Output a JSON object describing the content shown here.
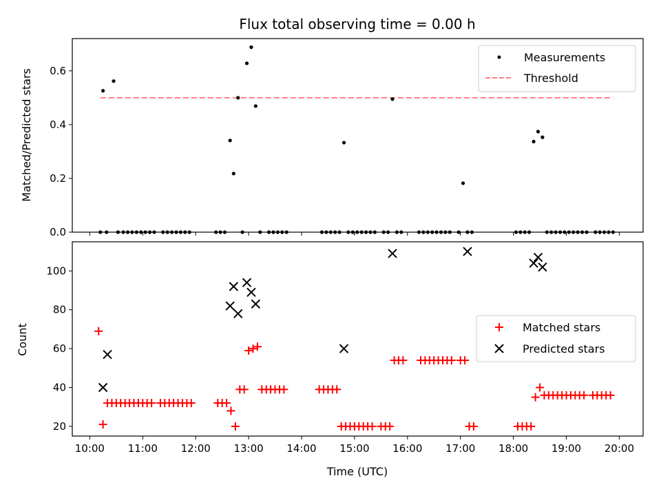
{
  "title": "Flux total observing time = 0.00 h",
  "chart_data": [
    {
      "type": "scatter",
      "ylabel": "Matched/Predicted stars",
      "xlabel": "",
      "x_range_hours": [
        9.67,
        20.45
      ],
      "ylim": [
        0.0,
        0.72
      ],
      "yticks": [
        0.0,
        0.2,
        0.4,
        0.6
      ],
      "ytick_labels": [
        "0.0",
        "0.2",
        "0.4",
        "0.6"
      ],
      "grid": false,
      "legend_position": "top-right",
      "series": [
        {
          "name": "Measurements",
          "kind": "points",
          "color": "#000000",
          "x": [
            "10:12",
            "10:15",
            "10:19",
            "10:27",
            "10:32",
            "10:38",
            "10:43",
            "10:48",
            "10:53",
            "10:58",
            "11:03",
            "11:08",
            "11:13",
            "11:23",
            "11:28",
            "11:33",
            "11:38",
            "11:43",
            "11:48",
            "11:53",
            "12:23",
            "12:28",
            "12:33",
            "12:39",
            "12:43",
            "12:48",
            "12:53",
            "12:58",
            "13:03",
            "13:08",
            "13:13",
            "13:23",
            "13:28",
            "13:33",
            "13:38",
            "13:43",
            "14:23",
            "14:28",
            "14:33",
            "14:38",
            "14:43",
            "14:48",
            "14:53",
            "14:58",
            "15:03",
            "15:08",
            "15:13",
            "15:18",
            "15:23",
            "15:33",
            "15:38",
            "15:43",
            "15:48",
            "15:53",
            "16:13",
            "16:18",
            "16:23",
            "16:28",
            "16:33",
            "16:38",
            "16:43",
            "16:48",
            "16:58",
            "17:03",
            "17:08",
            "17:13",
            "18:03",
            "18:08",
            "18:13",
            "18:18",
            "18:23",
            "18:28",
            "18:33",
            "18:38",
            "18:43",
            "18:48",
            "18:53",
            "18:58",
            "19:03",
            "19:08",
            "19:13",
            "19:18",
            "19:23",
            "19:33",
            "19:38",
            "19:43",
            "19:48",
            "19:53"
          ],
          "y": [
            0.0,
            0.526,
            0.0,
            0.562,
            0.0,
            0.0,
            0.0,
            0.0,
            0.0,
            0.0,
            0.0,
            0.0,
            0.0,
            0.0,
            0.0,
            0.0,
            0.0,
            0.0,
            0.0,
            0.0,
            0.0,
            0.0,
            0.0,
            0.341,
            0.218,
            0.5,
            0.0,
            0.628,
            0.688,
            0.469,
            0.0,
            0.0,
            0.0,
            0.0,
            0.0,
            0.0,
            0.0,
            0.0,
            0.0,
            0.0,
            0.0,
            0.333,
            0.0,
            0.0,
            0.0,
            0.0,
            0.0,
            0.0,
            0.0,
            0.0,
            0.0,
            0.495,
            0.0,
            0.0,
            0.0,
            0.0,
            0.0,
            0.0,
            0.0,
            0.0,
            0.0,
            0.0,
            0.0,
            0.182,
            0.0,
            0.0,
            0.0,
            0.0,
            0.0,
            0.0,
            0.337,
            0.374,
            0.353,
            0.0,
            0.0,
            0.0,
            0.0,
            0.0,
            0.0,
            0.0,
            0.0,
            0.0,
            0.0,
            0.0,
            0.0,
            0.0,
            0.0,
            0.0
          ]
        },
        {
          "name": "Threshold",
          "kind": "dashed-line",
          "color": "#ff7f7f",
          "x": [
            "10:12",
            "19:53"
          ],
          "y": [
            0.5,
            0.5
          ]
        }
      ]
    },
    {
      "type": "scatter",
      "ylabel": "Count",
      "xlabel": "Time (UTC)",
      "x_range_hours": [
        9.67,
        20.45
      ],
      "ylim": [
        15,
        115
      ],
      "yticks": [
        20,
        40,
        60,
        80,
        100
      ],
      "ytick_labels": [
        "20",
        "40",
        "60",
        "80",
        "100"
      ],
      "xticks": [
        "10:00",
        "11:00",
        "12:00",
        "13:00",
        "14:00",
        "15:00",
        "16:00",
        "17:00",
        "18:00",
        "19:00",
        "20:00"
      ],
      "grid": false,
      "legend_position": "center-right",
      "series": [
        {
          "name": "Matched stars",
          "marker": "plus",
          "color": "#ff0000",
          "x": [
            "10:10",
            "10:15",
            "10:20",
            "10:25",
            "10:30",
            "10:35",
            "10:40",
            "10:45",
            "10:50",
            "10:55",
            "11:00",
            "11:05",
            "11:10",
            "11:20",
            "11:25",
            "11:30",
            "11:35",
            "11:40",
            "11:45",
            "11:50",
            "11:55",
            "12:25",
            "12:30",
            "12:35",
            "12:40",
            "12:45",
            "12:50",
            "12:55",
            "13:00",
            "13:05",
            "13:10",
            "13:15",
            "13:20",
            "13:25",
            "13:30",
            "13:35",
            "13:40",
            "14:20",
            "14:25",
            "14:30",
            "14:35",
            "14:40",
            "14:45",
            "14:50",
            "14:55",
            "15:00",
            "15:05",
            "15:10",
            "15:15",
            "15:20",
            "15:30",
            "15:35",
            "15:40",
            "15:45",
            "15:50",
            "15:55",
            "16:15",
            "16:20",
            "16:25",
            "16:30",
            "16:35",
            "16:40",
            "16:45",
            "16:50",
            "17:00",
            "17:05",
            "17:10",
            "17:15",
            "18:05",
            "18:10",
            "18:15",
            "18:20",
            "18:25",
            "18:30",
            "18:35",
            "18:40",
            "18:45",
            "18:50",
            "18:55",
            "19:00",
            "19:05",
            "19:10",
            "19:15",
            "19:20",
            "19:30",
            "19:35",
            "19:40",
            "19:45",
            "19:50"
          ],
          "y": [
            69,
            21,
            32,
            32,
            32,
            32,
            32,
            32,
            32,
            32,
            32,
            32,
            32,
            32,
            32,
            32,
            32,
            32,
            32,
            32,
            32,
            32,
            32,
            32,
            28,
            20,
            39,
            39,
            59,
            60,
            61,
            39,
            39,
            39,
            39,
            39,
            39,
            39,
            39,
            39,
            39,
            39,
            20,
            20,
            20,
            20,
            20,
            20,
            20,
            20,
            20,
            20,
            20,
            54,
            54,
            54,
            54,
            54,
            54,
            54,
            54,
            54,
            54,
            54,
            54,
            54,
            20,
            20,
            20,
            20,
            20,
            20,
            35,
            40,
            36,
            36,
            36,
            36,
            36,
            36,
            36,
            36,
            36,
            36,
            36,
            36,
            36,
            36,
            36
          ]
        },
        {
          "name": "Predicted stars",
          "marker": "x",
          "color": "#000000",
          "x": [
            "10:15",
            "10:20",
            "12:39",
            "12:43",
            "12:48",
            "12:58",
            "13:03",
            "13:08",
            "14:48",
            "15:43",
            "17:08",
            "18:23",
            "18:28",
            "18:33"
          ],
          "y": [
            40,
            57,
            82,
            92,
            78,
            94,
            89,
            83,
            60,
            109,
            110,
            104,
            107,
            102
          ]
        }
      ]
    }
  ]
}
